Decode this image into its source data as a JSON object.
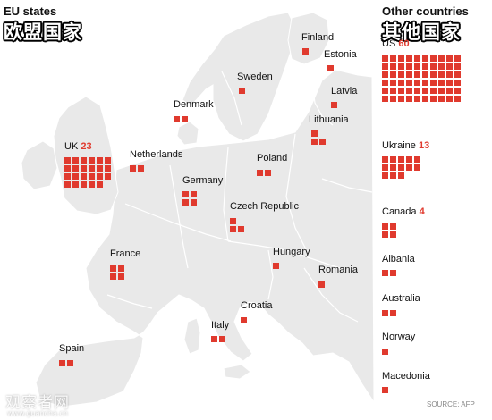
{
  "left_title": {
    "en": "EU states",
    "cn": "欧盟国家"
  },
  "right_title": {
    "en": "Other countries",
    "cn": "其他国家"
  },
  "colors": {
    "marker": "#e03a2e",
    "land": "#e9e9e9",
    "sea": "#ffffff",
    "border": "#ffffff"
  },
  "eu_states": [
    {
      "name": "UK",
      "count": "23"
    },
    {
      "name": "Netherlands",
      "count": ""
    },
    {
      "name": "Denmark",
      "count": ""
    },
    {
      "name": "Sweden",
      "count": ""
    },
    {
      "name": "Finland",
      "count": ""
    },
    {
      "name": "Estonia",
      "count": ""
    },
    {
      "name": "Latvia",
      "count": ""
    },
    {
      "name": "Lithuania",
      "count": ""
    },
    {
      "name": "Poland",
      "count": ""
    },
    {
      "name": "Germany",
      "count": ""
    },
    {
      "name": "Czech Republic",
      "count": ""
    },
    {
      "name": "France",
      "count": ""
    },
    {
      "name": "Hungary",
      "count": ""
    },
    {
      "name": "Romania",
      "count": ""
    },
    {
      "name": "Croatia",
      "count": ""
    },
    {
      "name": "Italy",
      "count": ""
    },
    {
      "name": "Spain",
      "count": ""
    }
  ],
  "other_countries": [
    {
      "name": "US",
      "count": "60"
    },
    {
      "name": "Ukraine",
      "count": "13"
    },
    {
      "name": "Canada",
      "count": "4"
    },
    {
      "name": "Albania",
      "count": ""
    },
    {
      "name": "Australia",
      "count": ""
    },
    {
      "name": "Norway",
      "count": ""
    },
    {
      "name": "Macedonia",
      "count": ""
    }
  ],
  "square_values": {
    "UK": 23,
    "Netherlands": 2,
    "Denmark": 2,
    "Sweden": 1,
    "Finland": 1,
    "Estonia": 1,
    "Latvia": 1,
    "Lithuania": 3,
    "Poland": 2,
    "Germany": 4,
    "Czech Republic": 3,
    "France": 4,
    "Hungary": 1,
    "Romania": 1,
    "Croatia": 1,
    "Italy": 2,
    "Spain": 2,
    "US": 60,
    "Ukraine": 13,
    "Canada": 4,
    "Albania": 2,
    "Australia": 2,
    "Norway": 1,
    "Macedonia": 1
  },
  "source": "SOURCE: AFP",
  "watermark": {
    "text": "观察者网",
    "url": "www.guancha.cn"
  }
}
